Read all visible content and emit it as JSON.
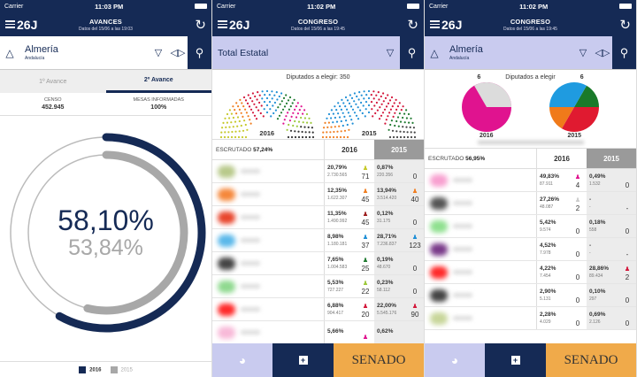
{
  "status_bar": [
    {
      "carrier": "Carrier",
      "time": "11:03 PM"
    },
    {
      "carrier": "Carrier",
      "time": "11:02 PM"
    },
    {
      "carrier": "Carrier",
      "time": "11:02 PM"
    }
  ],
  "logo": "26J",
  "screens": {
    "avances": {
      "header": {
        "title": "AVANCES",
        "subtitle": "Datos del 15/06 a las 19:03"
      },
      "location": {
        "name": "Almería",
        "region": "Andalucía"
      },
      "tabs": [
        {
          "label": "1º Avance",
          "active": false
        },
        {
          "label": "2º Avance",
          "active": true
        }
      ],
      "stats": [
        {
          "label": "CENSO",
          "value": "452.945"
        },
        {
          "label": "MESAS INFORMADAS",
          "value": "100%"
        }
      ],
      "participation": {
        "value_2016": "58,10%",
        "value_2015": "53,84%",
        "pct_2016": 58.1,
        "pct_2015": 53.84
      },
      "legend": [
        {
          "label": "2016",
          "color": "#152a55"
        },
        {
          "label": "2015",
          "color": "#a8a8a8"
        }
      ]
    },
    "congreso_total": {
      "header": {
        "title": "CONGRESO",
        "subtitle": "Datos del 15/06 a las 19:45"
      },
      "location": {
        "name": "Total Estatal"
      },
      "diputados": "Diputados a elegir: 350",
      "hemicycles": [
        {
          "year": "2016"
        },
        {
          "year": "2015"
        }
      ],
      "table": {
        "escrutado_label": "ESCRUTADO",
        "escrutado_value": "57,24%",
        "col_2016": "2016",
        "col_2015": "2015",
        "rows": [
          {
            "color": "#b8c98a",
            "p16": "20,79%",
            "v16": "2.730.565",
            "s16": "71",
            "ic16": "#c6c92a",
            "p15": "0,87%",
            "v15": "220.356",
            "s15": "0",
            "ic15": ""
          },
          {
            "color": "#f5873a",
            "p16": "12,35%",
            "v16": "1.622.307",
            "s16": "45",
            "ic16": "#f07f22",
            "p15": "13,94%",
            "v15": "3.514.420",
            "s15": "40",
            "ic15": "#f07f22"
          },
          {
            "color": "#e8452c",
            "p16": "11,35%",
            "v16": "1.490.992",
            "s16": "45",
            "ic16": "#9c1b1b",
            "p15": "0,12%",
            "v15": "31.175",
            "s15": "0",
            "ic15": ""
          },
          {
            "color": "#5ab8ea",
            "p16": "8,98%",
            "v16": "1.180.181",
            "s16": "37",
            "ic16": "#1f8fd6",
            "p15": "28,71%",
            "v15": "7.236.837",
            "s15": "123",
            "ic15": "#1f8fd6"
          },
          {
            "color": "#444",
            "p16": "7,65%",
            "v16": "1.004.583",
            "s16": "25",
            "ic16": "#1f7a30",
            "p15": "0,19%",
            "v15": "48.670",
            "s15": "0",
            "ic15": ""
          },
          {
            "color": "#8fd98f",
            "p16": "5,53%",
            "v16": "727.227",
            "s16": "22",
            "ic16": "#9cc83a",
            "p15": "0,23%",
            "v15": "58.112",
            "s15": "0",
            "ic15": ""
          },
          {
            "color": "#ff2a2a",
            "p16": "6,88%",
            "v16": "904.417",
            "s16": "20",
            "ic16": "#d3163a",
            "p15": "22,00%",
            "v15": "5.545.176",
            "s15": "90",
            "ic15": "#d3163a"
          },
          {
            "color": "#f8b9d8",
            "p16": "5,66%",
            "v16": "",
            "s16": "",
            "ic16": "#e0138f",
            "p15": "0,62%",
            "v15": "",
            "s15": "",
            "ic15": ""
          }
        ]
      }
    },
    "congreso_almeria": {
      "header": {
        "title": "CONGRESO",
        "subtitle": "Datos del 15/06 a las 19:45"
      },
      "location": {
        "name": "Almería",
        "region": "Andalucía"
      },
      "diputados": {
        "label": "Diputados a elegir",
        "v2016": "6",
        "v2015": "6"
      },
      "pies": [
        {
          "year": "2016"
        },
        {
          "year": "2015"
        }
      ],
      "table": {
        "escrutado_label": "ESCRUTADO",
        "escrutado_value": "56,95%",
        "col_2016": "2016",
        "col_2015": "2015",
        "rows": [
          {
            "color": "#f8a0d0",
            "p16": "49,83%",
            "v16": "87.911",
            "s16": "4",
            "ic16": "#e0138f",
            "p15": "0,49%",
            "v15": "1.532",
            "s15": "0",
            "ic15": ""
          },
          {
            "color": "#555",
            "p16": "27,26%",
            "v16": "48.087",
            "s16": "2",
            "ic16": "#cccccc",
            "p15": "-",
            "v15": "-",
            "s15": "-",
            "ic15": ""
          },
          {
            "color": "#8fe08f",
            "p16": "5,42%",
            "v16": "9.574",
            "s16": "0",
            "ic16": "",
            "p15": "0,18%",
            "v15": "558",
            "s15": "0",
            "ic15": ""
          },
          {
            "color": "#7a3a8a",
            "p16": "4,52%",
            "v16": "7.978",
            "s16": "0",
            "ic16": "",
            "p15": "-",
            "v15": "-",
            "s15": "-",
            "ic15": ""
          },
          {
            "color": "#ff2a2a",
            "p16": "4,22%",
            "v16": "7.454",
            "s16": "0",
            "ic16": "",
            "p15": "28,86%",
            "v15": "89.434",
            "s15": "2",
            "ic15": "#d3163a"
          },
          {
            "color": "#444",
            "p16": "2,90%",
            "v16": "5.131",
            "s16": "0",
            "ic16": "",
            "p15": "0,10%",
            "v15": "297",
            "s15": "0",
            "ic15": ""
          },
          {
            "color": "#c8d69a",
            "p16": "2,28%",
            "v16": "4.029",
            "s16": "0",
            "ic16": "",
            "p15": "0,69%",
            "v15": "2.126",
            "s15": "0",
            "ic15": ""
          }
        ]
      }
    }
  },
  "bottom_bar": {
    "senado_label": "SENADO"
  },
  "colors": {
    "navy": "#152a55",
    "lavender": "#c9cbef",
    "orange": "#f0aa4a",
    "grey": "#a8a8a8"
  }
}
